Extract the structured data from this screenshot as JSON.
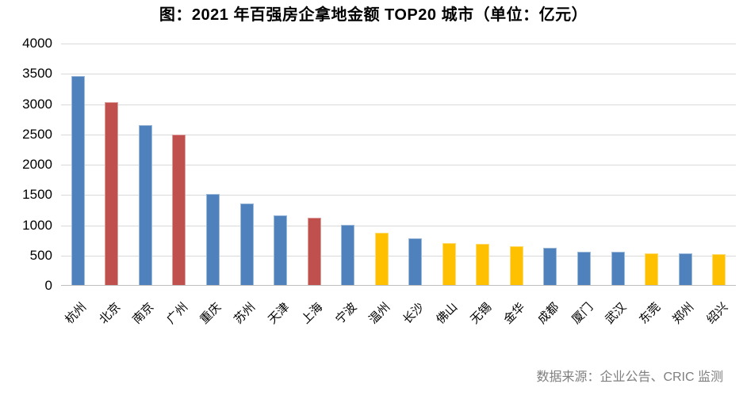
{
  "title": "图：2021 年百强房企拿地金额 TOP20 城市（单位：亿元）",
  "source_note": "数据来源：企业公告、CRIC 监测",
  "styles": {
    "bar_blue": "#4F81BD",
    "bar_red": "#C0504D",
    "bar_yellow": "#FFC000",
    "gridline_color": "#D9D9D9",
    "axis_line_color": "#BFBFBF",
    "title_color": "#000000",
    "axis_text_color": "#000000",
    "source_text_color": "#7F7F7F"
  },
  "chart_data": {
    "type": "bar",
    "title": "图：2021 年百强房企拿地金额 TOP20 城市（单位：亿元）",
    "unit": "亿元",
    "xlabel": "",
    "ylabel": "",
    "categories": [
      "杭州",
      "北京",
      "南京",
      "广州",
      "重庆",
      "苏州",
      "天津",
      "上海",
      "宁波",
      "温州",
      "长沙",
      "佛山",
      "无锡",
      "金华",
      "成都",
      "厦门",
      "武汉",
      "东莞",
      "郑州",
      "绍兴"
    ],
    "values": [
      3460,
      3030,
      2650,
      2500,
      1520,
      1360,
      1160,
      1120,
      1010,
      870,
      790,
      710,
      690,
      650,
      625,
      565,
      560,
      540,
      535,
      520
    ],
    "bar_colors": [
      "#4F81BD",
      "#C0504D",
      "#4F81BD",
      "#C0504D",
      "#4F81BD",
      "#4F81BD",
      "#4F81BD",
      "#C0504D",
      "#4F81BD",
      "#FFC000",
      "#4F81BD",
      "#FFC000",
      "#FFC000",
      "#FFC000",
      "#4F81BD",
      "#4F81BD",
      "#4F81BD",
      "#FFC000",
      "#4F81BD",
      "#FFC000"
    ],
    "ylim": [
      0,
      4000
    ],
    "yticks": [
      0,
      500,
      1000,
      1500,
      2000,
      2500,
      3000,
      3500,
      4000
    ],
    "grid": true,
    "legend": "none",
    "source": "数据来源：企业公告、CRIC 监测"
  }
}
